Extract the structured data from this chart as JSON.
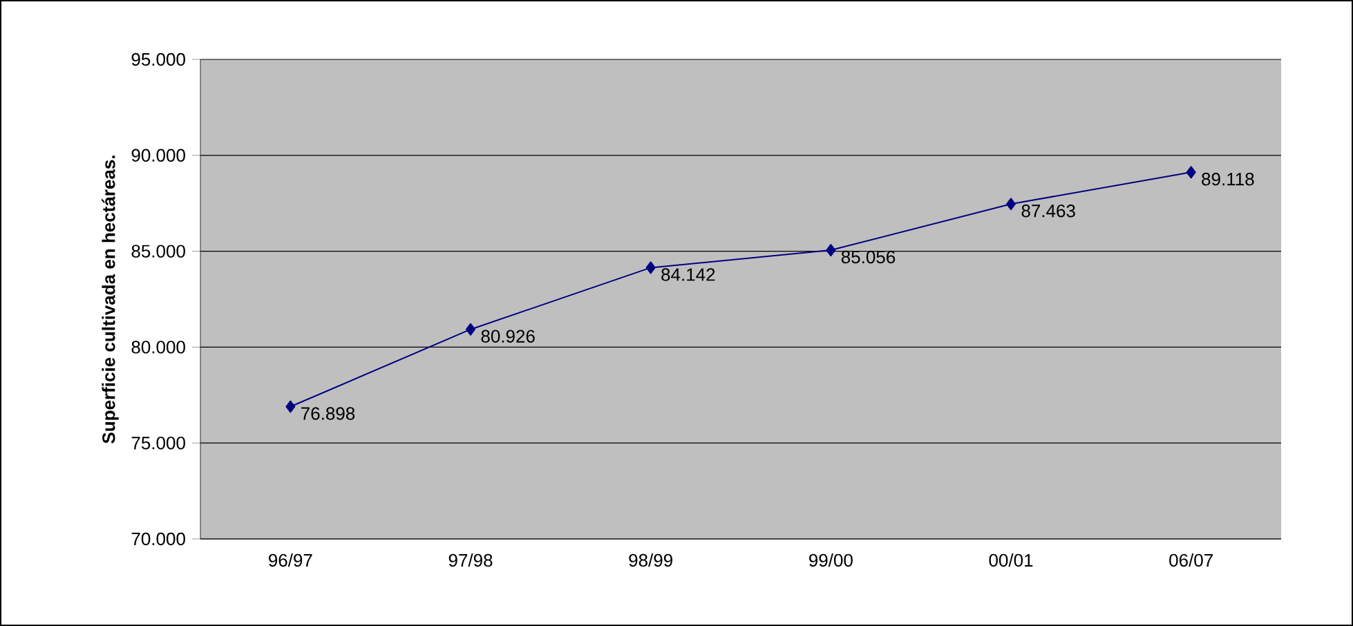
{
  "chart_data": {
    "type": "line",
    "ylabel": "Superficie cultivada en hectáreas.",
    "categories": [
      "96/97",
      "97/98",
      "98/99",
      "99/00",
      "00/01",
      "06/07"
    ],
    "values": [
      76898,
      80926,
      84142,
      85056,
      87463,
      89118
    ],
    "value_labels": [
      "76.898",
      "80.926",
      "84.142",
      "85.056",
      "87.463",
      "89.118"
    ],
    "color": "#000080",
    "marker": "diamond",
    "line_style": "solid",
    "grid": "y",
    "ylim": [
      70000,
      95000
    ],
    "yticks": [
      {
        "value": 70000,
        "label": "70.000"
      },
      {
        "value": 75000,
        "label": "75.000"
      },
      {
        "value": 80000,
        "label": "80.000"
      },
      {
        "value": 85000,
        "label": "85.000"
      },
      {
        "value": 90000,
        "label": "90.000"
      },
      {
        "value": 95000,
        "label": "95.000"
      }
    ]
  }
}
